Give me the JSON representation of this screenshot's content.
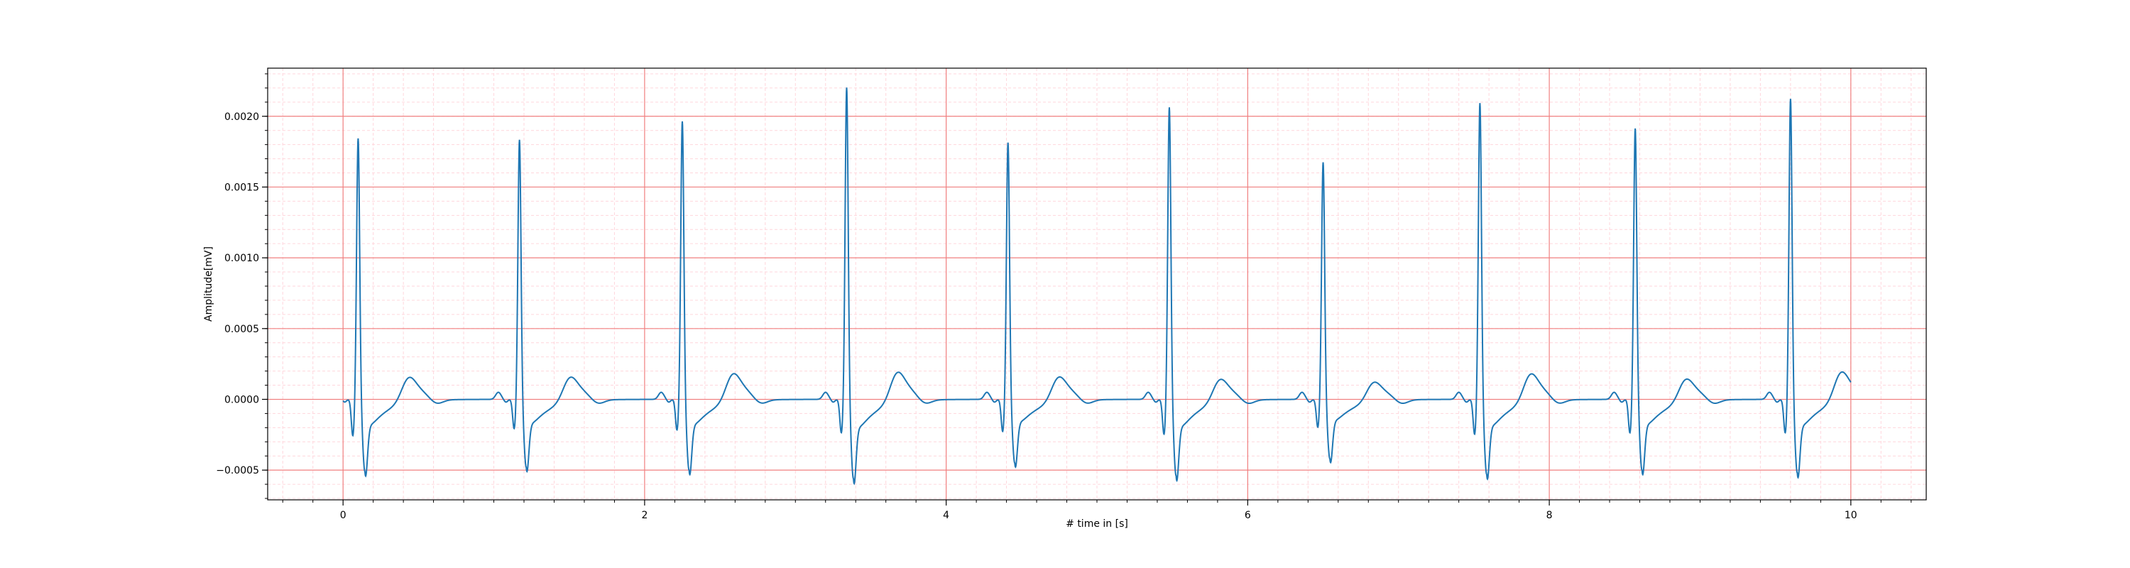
{
  "chart_data": {
    "type": "line",
    "title": "",
    "xlabel": "# time in [s]",
    "ylabel": "Amplitude[mV]",
    "xlim": [
      -0.5,
      10.5
    ],
    "ylim": [
      -0.00071,
      0.00234
    ],
    "xticks": [
      0,
      2,
      4,
      6,
      8,
      10
    ],
    "xtick_labels": [
      "0",
      "2",
      "4",
      "6",
      "8",
      "10"
    ],
    "yticks": [
      -0.0005,
      0.0,
      0.0005,
      0.001,
      0.0015,
      0.002
    ],
    "ytick_labels": [
      "−0.0005",
      "0.0000",
      "0.0005",
      "0.0010",
      "0.0015",
      "0.0020"
    ],
    "grid": true,
    "grid_major_color": "#f08080",
    "grid_minor_color": "#ffd6dc",
    "line_color": "#1f77b4",
    "series": [
      {
        "name": "",
        "beats": [
          {
            "r_time": 0.1,
            "r_peak": 0.00185,
            "q_min": -0.00026,
            "s_min": -0.00051,
            "t_peak": 0.00014
          },
          {
            "r_time": 1.17,
            "r_peak": 0.00184,
            "q_min": -0.00021,
            "s_min": -0.00048,
            "t_peak": 0.00014
          },
          {
            "r_time": 2.25,
            "r_peak": 0.00197,
            "q_min": -0.00022,
            "s_min": -0.0005,
            "t_peak": 0.00016
          },
          {
            "r_time": 3.34,
            "r_peak": 0.00221,
            "q_min": -0.00024,
            "s_min": -0.00056,
            "t_peak": 0.00017
          },
          {
            "r_time": 4.41,
            "r_peak": 0.00182,
            "q_min": -0.00023,
            "s_min": -0.00045,
            "t_peak": 0.00014
          },
          {
            "r_time": 5.48,
            "r_peak": 0.00207,
            "q_min": -0.00025,
            "s_min": -0.00054,
            "t_peak": 0.00013
          },
          {
            "r_time": 6.5,
            "r_peak": 0.00168,
            "q_min": -0.0002,
            "s_min": -0.00042,
            "t_peak": 0.00011
          },
          {
            "r_time": 7.54,
            "r_peak": 0.0021,
            "q_min": -0.00025,
            "s_min": -0.00053,
            "t_peak": 0.00016
          },
          {
            "r_time": 8.57,
            "r_peak": 0.00192,
            "q_min": -0.00024,
            "s_min": -0.0005,
            "t_peak": 0.00013
          },
          {
            "r_time": 9.6,
            "r_peak": 0.00213,
            "q_min": -0.00024,
            "s_min": -0.00052,
            "t_peak": 0.00017
          }
        ],
        "x_range": [
          0.0,
          10.0
        ]
      }
    ]
  }
}
